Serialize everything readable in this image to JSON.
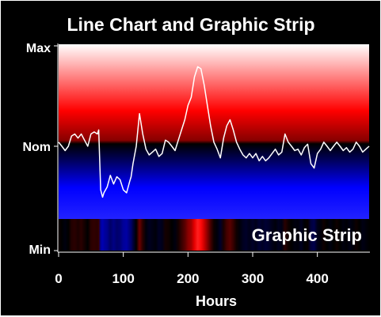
{
  "chart_data": {
    "type": "line",
    "title": "Line Chart and Graphic Strip",
    "xlabel": "Hours",
    "ylabel": "",
    "xlim": [
      0,
      480
    ],
    "y_tick_labels": [
      "Max",
      "Nom",
      "Min"
    ],
    "ylim": [
      0,
      1
    ],
    "nominal_level": 0.5,
    "x_ticks": [
      0,
      100,
      200,
      300,
      400
    ],
    "strip_label": "Graphic Strip",
    "colors": {
      "high": "#ff0000",
      "nominal": "#000000",
      "low": "#0000ff",
      "peak": "#ffffff",
      "line": "#ffffff",
      "background": "#000000"
    },
    "series": [
      {
        "x": [
          0,
          5,
          10,
          15,
          20,
          25,
          30,
          35,
          40,
          45,
          50,
          55,
          60,
          62,
          65,
          68,
          70,
          75,
          80,
          85,
          90,
          95,
          100,
          105,
          110,
          112,
          115,
          120,
          125,
          130,
          135,
          140,
          145,
          150,
          155,
          160,
          165,
          170,
          175,
          180,
          185,
          190,
          195,
          200,
          205,
          210,
          215,
          220,
          225,
          230,
          235,
          240,
          245,
          250,
          255,
          260,
          265,
          270,
          275,
          280,
          285,
          290,
          295,
          300,
          305,
          310,
          315,
          320,
          325,
          330,
          335,
          340,
          345,
          350,
          355,
          360,
          365,
          370,
          375,
          380,
          385,
          390,
          395,
          400,
          405,
          410,
          415,
          420,
          425,
          430,
          435,
          440,
          445,
          450,
          455,
          460,
          465,
          470,
          475,
          480
        ],
        "y": [
          0.52,
          0.5,
          0.47,
          0.5,
          0.55,
          0.56,
          0.54,
          0.56,
          0.53,
          0.5,
          0.56,
          0.57,
          0.56,
          0.58,
          0.2,
          0.15,
          0.18,
          0.22,
          0.3,
          0.24,
          0.29,
          0.27,
          0.2,
          0.18,
          0.26,
          0.29,
          0.38,
          0.5,
          0.66,
          0.56,
          0.48,
          0.44,
          0.46,
          0.48,
          0.43,
          0.45,
          0.53,
          0.52,
          0.5,
          0.47,
          0.53,
          0.58,
          0.63,
          0.7,
          0.74,
          0.84,
          0.89,
          0.88,
          0.8,
          0.7,
          0.6,
          0.52,
          0.48,
          0.42,
          0.54,
          0.6,
          0.63,
          0.58,
          0.52,
          0.48,
          0.44,
          0.42,
          0.45,
          0.42,
          0.45,
          0.4,
          0.43,
          0.4,
          0.42,
          0.45,
          0.48,
          0.44,
          0.46,
          0.56,
          0.52,
          0.5,
          0.47,
          0.48,
          0.44,
          0.49,
          0.51,
          0.38,
          0.35,
          0.45,
          0.48,
          0.52,
          0.5,
          0.47,
          0.5,
          0.52,
          0.5,
          0.47,
          0.49,
          0.46,
          0.48,
          0.52,
          0.5,
          0.46,
          0.48,
          0.5
        ]
      }
    ]
  }
}
